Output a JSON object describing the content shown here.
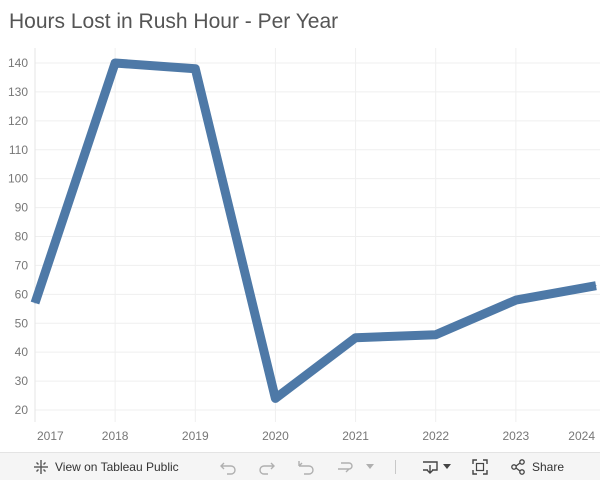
{
  "chart_data": {
    "type": "line",
    "title": "Hours Lost in Rush Hour - Per Year",
    "xlabel": "",
    "ylabel": "",
    "x": [
      "2017",
      "2018",
      "2019",
      "2020",
      "2021",
      "2022",
      "2023",
      "2024"
    ],
    "series": [
      {
        "values": [
          57,
          140,
          138,
          24,
          45,
          46,
          58,
          63
        ]
      }
    ],
    "y_ticks": [
      20,
      30,
      40,
      50,
      60,
      70,
      80,
      90,
      100,
      110,
      120,
      130,
      140
    ],
    "ylim": [
      18,
      145
    ],
    "grid": true,
    "line_color": "#4e79a7"
  },
  "toolbar": {
    "view_label": "View on Tableau Public",
    "share_label": "Share",
    "icons": [
      "tableau-icon",
      "undo-icon",
      "redo-icon",
      "revert-icon",
      "refresh-icon",
      "pause-dropdown-icon",
      "download-icon",
      "fullscreen-icon",
      "share-icon"
    ]
  }
}
